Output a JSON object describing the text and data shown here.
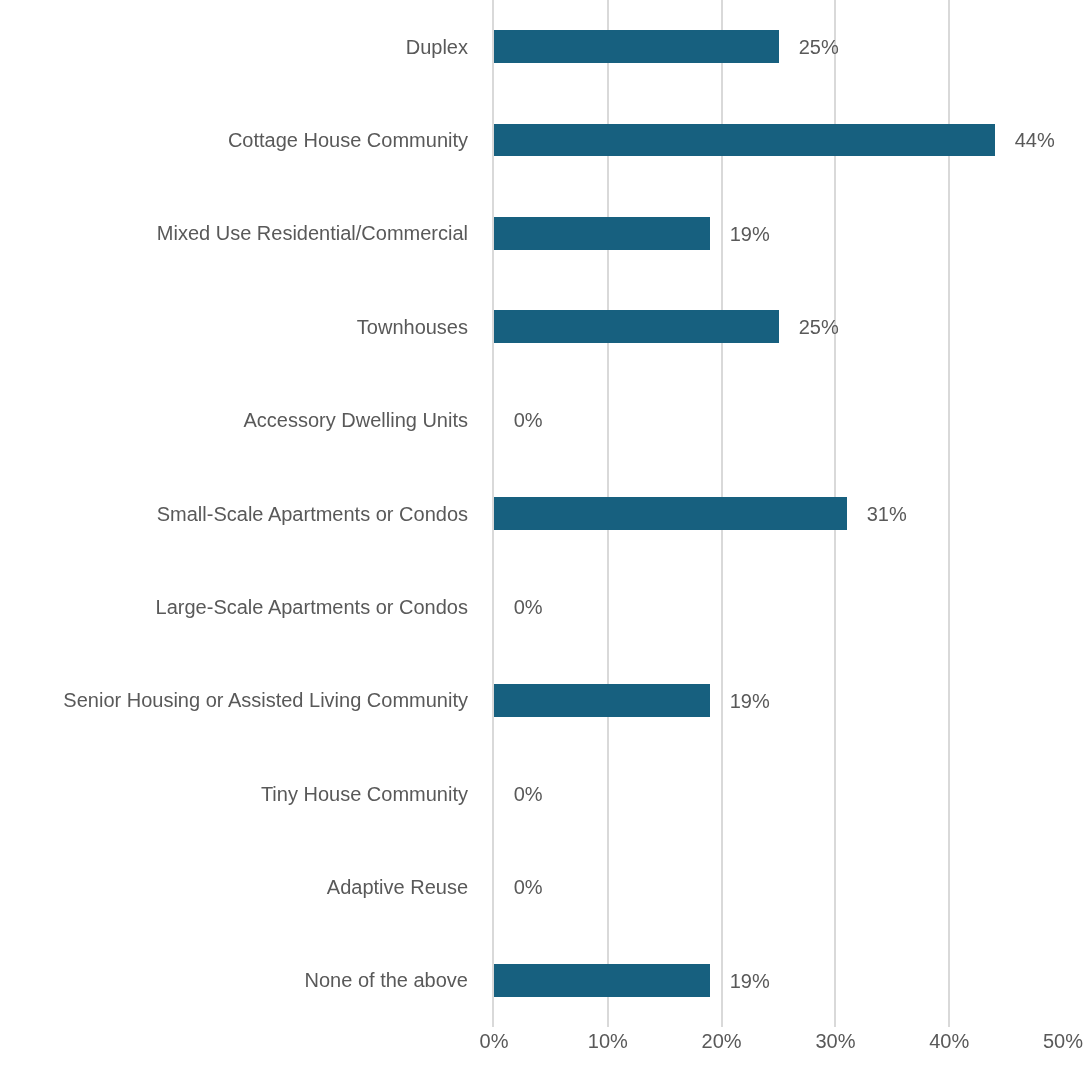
{
  "chart_data": {
    "type": "bar",
    "orientation": "horizontal",
    "categories": [
      "Duplex",
      "Cottage House Community",
      "Mixed Use Residential/Commercial",
      "Townhouses",
      "Accessory Dwelling Units",
      "Small-Scale Apartments or Condos",
      "Large-Scale Apartments or Condos",
      "Senior Housing or Assisted Living Community",
      "Tiny House Community",
      "Adaptive Reuse",
      "None of the above"
    ],
    "values": [
      25,
      44,
      19,
      25,
      0,
      31,
      0,
      19,
      0,
      0,
      19
    ],
    "value_labels": [
      "25%",
      "44%",
      "19%",
      "25%",
      "0%",
      "31%",
      "0%",
      "19%",
      "0%",
      "0%",
      "19%"
    ],
    "color": "#17607f",
    "xlim": [
      0,
      50
    ],
    "xticks": [
      {
        "value": 0,
        "label": "0%"
      },
      {
        "value": 10,
        "label": "10%"
      },
      {
        "value": 20,
        "label": "20%"
      },
      {
        "value": 30,
        "label": "30%"
      },
      {
        "value": 40,
        "label": "40%"
      },
      {
        "value": 50,
        "label": "50%"
      }
    ],
    "grid": "x"
  }
}
